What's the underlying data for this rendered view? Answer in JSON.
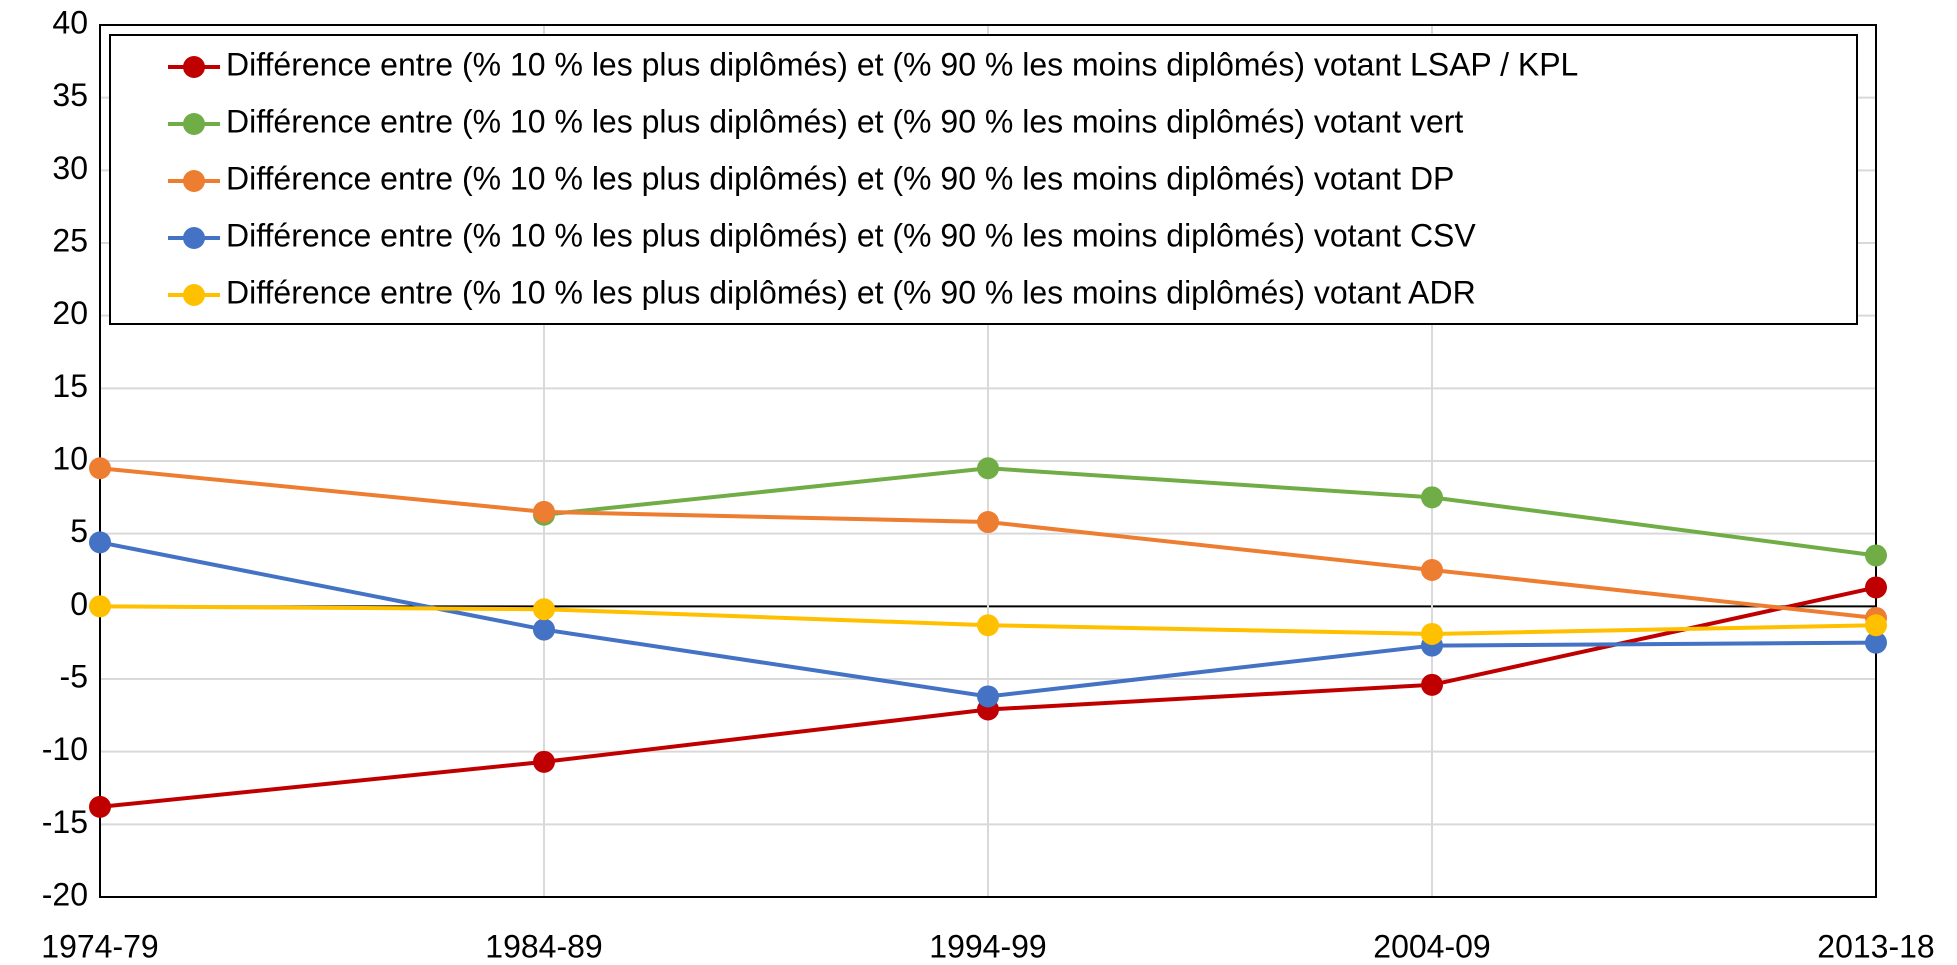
{
  "chart_data": {
    "type": "line",
    "categories": [
      "1974-79",
      "1984-89",
      "1994-99",
      "2004-09",
      "2013-18"
    ],
    "series": [
      {
        "name": "Différence entre (% 10 % les plus diplômés) et (% 90 % les moins diplômés) votant LSAP / KPL",
        "color": "#c00000",
        "values": [
          -13.8,
          -10.7,
          -7.1,
          -5.4,
          1.3
        ]
      },
      {
        "name": "Différence entre (% 10 % les plus diplômés) et (% 90 % les moins diplômés) votant vert",
        "color": "#70ad47",
        "values": [
          null,
          6.3,
          9.5,
          7.5,
          3.5
        ]
      },
      {
        "name": "Différence entre (% 10 % les plus diplômés) et (% 90 % les moins diplômés) votant DP",
        "color": "#ed7d31",
        "values": [
          9.5,
          6.5,
          5.8,
          2.5,
          -0.8
        ]
      },
      {
        "name": "Différence entre (% 10 % les plus diplômés) et (% 90 % les moins diplômés) votant CSV",
        "color": "#4472c4",
        "values": [
          4.4,
          -1.6,
          -6.2,
          -2.7,
          -2.5
        ]
      },
      {
        "name": "Différence entre (% 10 % les plus diplômés) et (% 90 % les moins diplômés) votant ADR",
        "color": "#ffc000",
        "values": [
          0,
          -0.2,
          -1.3,
          -1.9,
          -1.3
        ]
      }
    ],
    "ylim": [
      -20,
      40
    ],
    "yticks": [
      -20,
      -15,
      -10,
      -5,
      0,
      5,
      10,
      15,
      20,
      25,
      30,
      35,
      40
    ],
    "grid": true
  }
}
